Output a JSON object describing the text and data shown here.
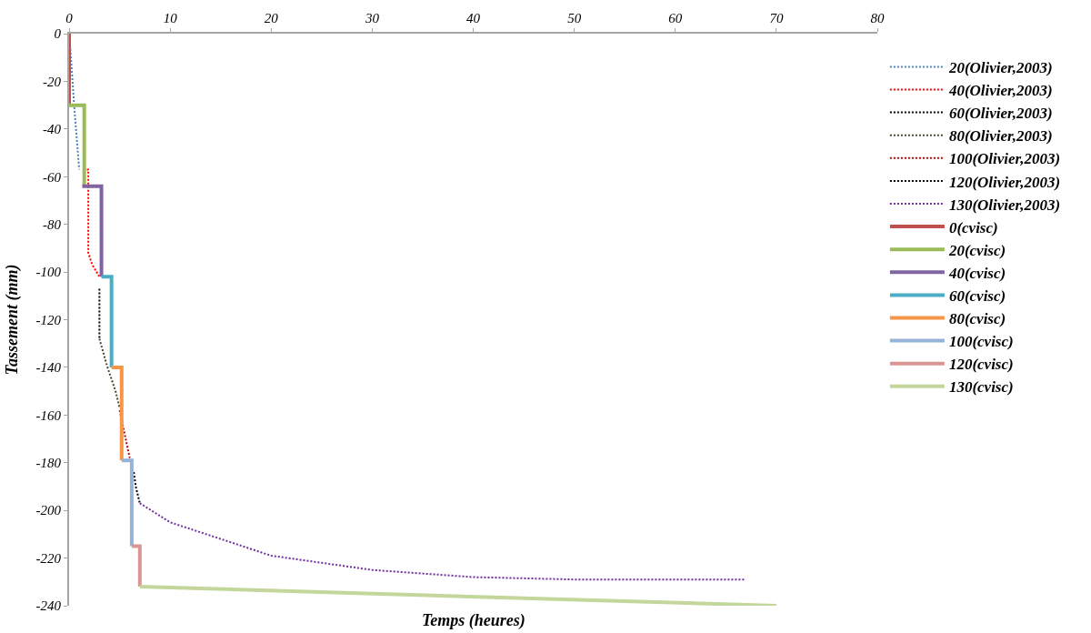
{
  "chart_data": {
    "type": "line",
    "xlabel": "Temps (heures)",
    "ylabel": "Tassement (mm)",
    "xlim": [
      0,
      80
    ],
    "xticks": [
      0,
      10,
      20,
      30,
      40,
      50,
      60,
      70,
      80
    ],
    "ylim": [
      -240,
      0
    ],
    "yticks": [
      -240,
      -220,
      -200,
      -180,
      -160,
      -140,
      -120,
      -100,
      -80,
      -60,
      -40,
      -20,
      0
    ],
    "legend": "right",
    "marker": "none",
    "series": [
      {
        "name": "20(Olivier,2003)",
        "color": "#4f81bd",
        "line_style": "dotted",
        "x": [
          0.1,
          0.5,
          1.0
        ],
        "values": [
          -5,
          -30,
          -57
        ]
      },
      {
        "name": "40(Olivier,2003)",
        "color": "#ff0000",
        "line_style": "dotted",
        "x": [
          1.4,
          1.9,
          1.9,
          2.3,
          3.0
        ],
        "values": [
          -57,
          -57,
          -92,
          -97,
          -102
        ]
      },
      {
        "name": "60(Olivier,2003)",
        "color": "#000000",
        "line_style": "dotted",
        "x": [
          3.0,
          3.0
        ],
        "values": [
          -107,
          -128
        ]
      },
      {
        "name": "80(Olivier,2003)",
        "color": "#4a452a",
        "line_style": "dotted",
        "x": [
          3.0,
          3.8,
          4.6,
          5.0
        ],
        "values": [
          -128,
          -140,
          -150,
          -157
        ]
      },
      {
        "name": "100(Olivier,2003)",
        "color": "#c00000",
        "line_style": "dotted",
        "x": [
          5.0,
          5.4,
          5.8,
          6.0
        ],
        "values": [
          -158,
          -166,
          -174,
          -178
        ]
      },
      {
        "name": "120(Olivier,2003)",
        "color": "#000000",
        "line_style": "dotted",
        "x": [
          6.4,
          6.6,
          7.0
        ],
        "values": [
          -184,
          -190,
          -197
        ]
      },
      {
        "name": "130(Olivier,2003)",
        "color": "#7030a0",
        "line_style": "dotted",
        "x": [
          7.0,
          10,
          15,
          20,
          30,
          40,
          50,
          67
        ],
        "values": [
          -197,
          -205,
          -212,
          -219,
          -225,
          -228,
          -229,
          -229
        ]
      },
      {
        "name": "0(cvisc)",
        "color": "#c0504d",
        "line_style": "solid",
        "x": [
          0,
          0
        ],
        "values": [
          0,
          -30
        ]
      },
      {
        "name": "20(cvisc)",
        "color": "#9bbb59",
        "line_style": "solid",
        "x": [
          0,
          1.5,
          1.5
        ],
        "values": [
          -30,
          -30,
          -64
        ]
      },
      {
        "name": "40(cvisc)",
        "color": "#8064a2",
        "line_style": "solid",
        "x": [
          1.3,
          3.2,
          3.2
        ],
        "values": [
          -64,
          -64,
          -102
        ]
      },
      {
        "name": "60(cvisc)",
        "color": "#4bacc6",
        "line_style": "solid",
        "x": [
          3.2,
          4.2,
          4.2
        ],
        "values": [
          -102,
          -102,
          -140
        ]
      },
      {
        "name": "80(cvisc)",
        "color": "#f79646",
        "line_style": "solid",
        "x": [
          4.2,
          5.2,
          5.2
        ],
        "values": [
          -140,
          -140,
          -179
        ]
      },
      {
        "name": "100(cvisc)",
        "color": "#95b3d7",
        "line_style": "solid",
        "x": [
          5.2,
          6.2,
          6.2
        ],
        "values": [
          -179,
          -179,
          -215
        ]
      },
      {
        "name": "120(cvisc)",
        "color": "#d99694",
        "line_style": "solid",
        "x": [
          6.2,
          7.0,
          7.0
        ],
        "values": [
          -215,
          -215,
          -232
        ]
      },
      {
        "name": "130(cvisc)",
        "color": "#c3d69b",
        "line_style": "solid",
        "x": [
          7.0,
          70
        ],
        "values": [
          -232,
          -240
        ]
      }
    ]
  }
}
